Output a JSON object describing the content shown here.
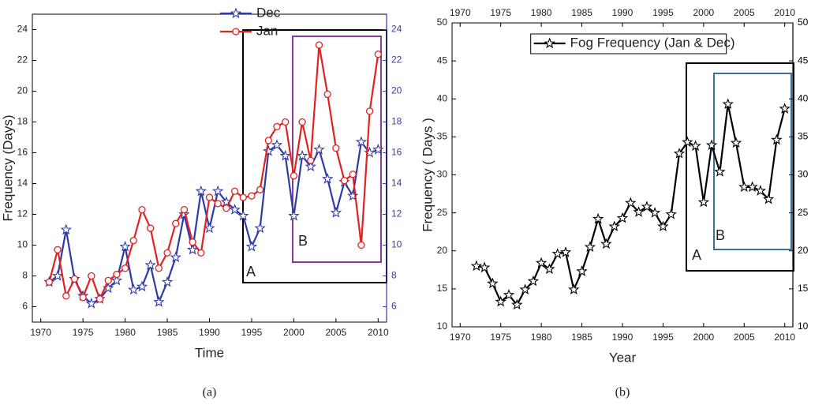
{
  "chart_data": [
    {
      "type": "line",
      "caption": "(a)",
      "xlabel": "Time",
      "ylabel": "Frequency (Days)",
      "x": [
        1971,
        1972,
        1973,
        1974,
        1975,
        1976,
        1977,
        1978,
        1979,
        1980,
        1981,
        1982,
        1983,
        1984,
        1985,
        1986,
        1987,
        1988,
        1989,
        1990,
        1991,
        1992,
        1993,
        1994,
        1995,
        1996,
        1997,
        1998,
        1999,
        2000,
        2001,
        2002,
        2003,
        2004,
        2005,
        2006,
        2007,
        2008,
        2009,
        2010
      ],
      "series": [
        {
          "name": "Dec",
          "color": "#2e3aa8",
          "marker": "star",
          "values": [
            7.6,
            8.0,
            11.0,
            7.8,
            6.7,
            6.2,
            6.5,
            7.2,
            7.7,
            9.9,
            7.1,
            7.3,
            8.7,
            6.3,
            7.6,
            9.2,
            12.0,
            9.7,
            13.5,
            11.1,
            13.5,
            12.8,
            12.3,
            11.9,
            9.9,
            11.1,
            16.1,
            16.5,
            15.8,
            11.9,
            15.8,
            15.1,
            16.2,
            14.3,
            12.1,
            14.1,
            13.2,
            16.7,
            16.0,
            16.2
          ]
        },
        {
          "name": "Jan",
          "color": "#e02222",
          "marker": "circle",
          "values": [
            7.6,
            9.7,
            6.7,
            7.8,
            6.6,
            8.0,
            6.5,
            7.7,
            8.1,
            8.5,
            10.3,
            12.3,
            11.1,
            8.5,
            9.5,
            11.4,
            12.3,
            10.2,
            9.5,
            13.1,
            12.7,
            12.4,
            13.5,
            13.1,
            13.2,
            13.6,
            16.8,
            17.7,
            18.0,
            14.5,
            18.0,
            15.5,
            23.0,
            19.8,
            16.3,
            14.2,
            14.6,
            10.0,
            18.7,
            22.4
          ]
        }
      ],
      "xlim": [
        1969,
        2011
      ],
      "xticks": [
        1970,
        1975,
        1980,
        1985,
        1990,
        1995,
        2000,
        2005,
        2010
      ],
      "ylim": [
        5,
        25
      ],
      "yticks": [
        6,
        8,
        10,
        12,
        14,
        16,
        18,
        20,
        22,
        24
      ],
      "y2lim": [
        5,
        25
      ],
      "y2ticks": [
        6,
        8,
        10,
        12,
        14,
        16,
        18,
        20,
        22,
        24
      ],
      "y2color": "#3a3aaa",
      "legend": "top-center",
      "annotations": [
        {
          "text": "A"
        },
        {
          "text": "B"
        }
      ]
    },
    {
      "type": "line",
      "caption": "(b)",
      "xlabel": "Year",
      "ylabel": "Frequency ( Days )",
      "x": [
        1972,
        1973,
        1974,
        1975,
        1976,
        1977,
        1978,
        1979,
        1980,
        1981,
        1982,
        1983,
        1984,
        1985,
        1986,
        1987,
        1988,
        1989,
        1990,
        1991,
        1992,
        1993,
        1994,
        1995,
        1996,
        1997,
        1998,
        1999,
        2000,
        2001,
        2002,
        2003,
        2004,
        2005,
        2006,
        2007,
        2008,
        2009,
        2010
      ],
      "series": [
        {
          "name": "Fog Frequency (Jan & Dec)",
          "color": "#000000",
          "marker": "star",
          "values": [
            18.0,
            17.8,
            15.7,
            13.3,
            14.2,
            12.9,
            14.9,
            16.0,
            18.4,
            17.6,
            19.6,
            19.8,
            14.9,
            17.3,
            20.5,
            24.2,
            20.9,
            23.2,
            24.3,
            26.3,
            25.1,
            25.8,
            25.0,
            23.2,
            24.8,
            32.8,
            34.3,
            33.8,
            26.4,
            33.9,
            30.4,
            39.3,
            34.2,
            28.4,
            28.4,
            27.9,
            26.8,
            34.6,
            38.7
          ]
        }
      ],
      "xlim": [
        1969,
        2011
      ],
      "xticks": [
        1970,
        1975,
        1980,
        1985,
        1990,
        1995,
        2000,
        2005,
        2010
      ],
      "x2lim": [
        1969,
        2011
      ],
      "x2ticks": [
        1970,
        1975,
        1980,
        1985,
        1990,
        1995,
        2000,
        2005,
        2010
      ],
      "ylim": [
        10,
        50
      ],
      "yticks": [
        10,
        15,
        20,
        25,
        30,
        35,
        40,
        45,
        50
      ],
      "y2lim": [
        10,
        50
      ],
      "y2ticks": [
        10,
        15,
        20,
        25,
        30,
        35,
        40,
        45,
        50
      ],
      "y2color": "#000000",
      "legend": "top-left",
      "annotations": [
        {
          "text": "A"
        },
        {
          "text": "B"
        }
      ]
    }
  ]
}
